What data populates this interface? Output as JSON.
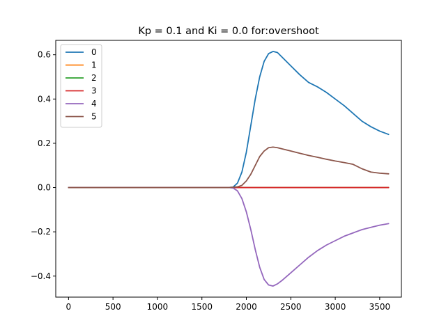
{
  "chart_data": {
    "type": "line",
    "title": "Kp = 0.1 and Ki = 0.0 for:overshoot",
    "xlabel": "",
    "ylabel": "",
    "xlim": [
      -144,
      3744
    ],
    "ylim": [
      -0.495,
      0.665
    ],
    "xticks": [
      0,
      500,
      1000,
      1500,
      2000,
      2500,
      3000,
      3500
    ],
    "yticks": [
      -0.4,
      -0.2,
      0.0,
      0.2,
      0.4,
      0.6
    ],
    "ytick_labels": [
      "−0.4",
      "−0.2",
      "0.0",
      "0.2",
      "0.4",
      "0.6"
    ],
    "grid": false,
    "legend_position": "top-left",
    "series": [
      {
        "name": "0",
        "color": "#1f77b4",
        "x": [
          0,
          1800,
          1850,
          1900,
          1950,
          2000,
          2050,
          2100,
          2150,
          2200,
          2250,
          2300,
          2350,
          2400,
          2500,
          2600,
          2700,
          2800,
          2900,
          3000,
          3100,
          3200,
          3300,
          3400,
          3500,
          3600
        ],
        "y": [
          0,
          0,
          0.002,
          0.02,
          0.07,
          0.16,
          0.28,
          0.4,
          0.5,
          0.57,
          0.605,
          0.615,
          0.61,
          0.59,
          0.55,
          0.51,
          0.475,
          0.455,
          0.43,
          0.4,
          0.37,
          0.335,
          0.3,
          0.275,
          0.255,
          0.24
        ]
      },
      {
        "name": "1",
        "color": "#ff7f0e",
        "x": [
          0,
          3600
        ],
        "y": [
          0,
          0
        ]
      },
      {
        "name": "2",
        "color": "#2ca02c",
        "x": [
          0,
          3600
        ],
        "y": [
          0,
          0
        ]
      },
      {
        "name": "3",
        "color": "#d62728",
        "x": [
          0,
          3600
        ],
        "y": [
          0,
          0
        ]
      },
      {
        "name": "4",
        "color": "#9467bd",
        "x": [
          0,
          1800,
          1850,
          1900,
          1950,
          2000,
          2050,
          2100,
          2150,
          2200,
          2250,
          2300,
          2350,
          2400,
          2500,
          2600,
          2700,
          2800,
          2900,
          3000,
          3100,
          3200,
          3300,
          3400,
          3500,
          3600
        ],
        "y": [
          0,
          0,
          -0.002,
          -0.015,
          -0.05,
          -0.11,
          -0.19,
          -0.28,
          -0.36,
          -0.415,
          -0.44,
          -0.445,
          -0.435,
          -0.42,
          -0.385,
          -0.35,
          -0.315,
          -0.285,
          -0.26,
          -0.24,
          -0.22,
          -0.205,
          -0.19,
          -0.18,
          -0.17,
          -0.163
        ]
      },
      {
        "name": "5",
        "color": "#8c564b",
        "x": [
          0,
          1800,
          1900,
          1950,
          2000,
          2050,
          2100,
          2150,
          2200,
          2250,
          2300,
          2350,
          2400,
          2500,
          2600,
          2700,
          2800,
          2900,
          3000,
          3100,
          3200,
          3300,
          3400,
          3500,
          3600
        ],
        "y": [
          0,
          0,
          0.003,
          0.01,
          0.03,
          0.06,
          0.1,
          0.14,
          0.165,
          0.18,
          0.183,
          0.18,
          0.175,
          0.165,
          0.155,
          0.145,
          0.137,
          0.128,
          0.12,
          0.113,
          0.105,
          0.085,
          0.07,
          0.065,
          0.062
        ]
      }
    ]
  }
}
